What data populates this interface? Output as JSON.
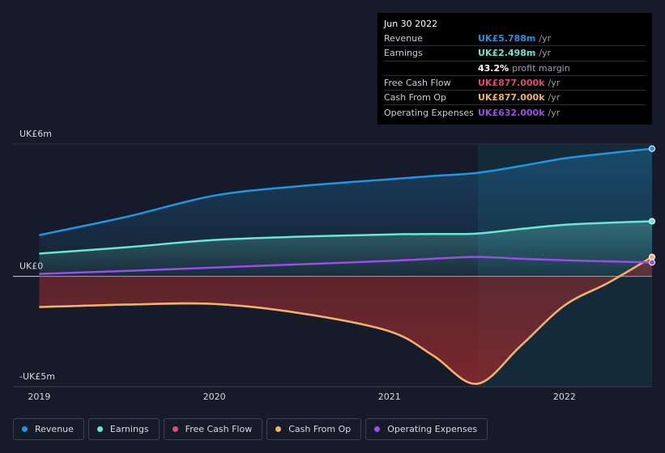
{
  "chart_data": {
    "type": "line",
    "x": [
      2019,
      2019.5,
      2020,
      2020.5,
      2021,
      2021.25,
      2021.5,
      2021.75,
      2022,
      2022.25,
      2022.5
    ],
    "series": [
      {
        "name": "Revenue",
        "color": "#2394df",
        "fill": true,
        "values": [
          1.87,
          2.7,
          3.66,
          4.1,
          4.4,
          4.55,
          4.69,
          5.0,
          5.35,
          5.58,
          5.788
        ]
      },
      {
        "name": "Earnings",
        "color": "#6ce5d4",
        "fill": true,
        "values": [
          1.03,
          1.32,
          1.65,
          1.8,
          1.9,
          1.92,
          1.94,
          2.15,
          2.34,
          2.43,
          2.498
        ]
      },
      {
        "name": "Free Cash Flow",
        "color": "#d94d7f",
        "fill": false,
        "values": [
          -1.39,
          -1.28,
          -1.25,
          -1.68,
          -2.49,
          -3.59,
          -4.87,
          -3.15,
          -1.32,
          -0.29,
          0.877
        ]
      },
      {
        "name": "Cash From Op",
        "color": "#f0b26b",
        "fill": true,
        "values": [
          -1.39,
          -1.28,
          -1.25,
          -1.68,
          -2.49,
          -3.59,
          -4.87,
          -3.15,
          -1.32,
          -0.29,
          0.877
        ]
      },
      {
        "name": "Operating Expenses",
        "color": "#9b4de8",
        "fill": false,
        "values": [
          0.11,
          0.25,
          0.4,
          0.55,
          0.7,
          0.8,
          0.88,
          0.8,
          0.73,
          0.68,
          0.632
        ]
      }
    ],
    "xlim": [
      2018.85,
      2022.5
    ],
    "xticks": [
      2019,
      2020,
      2021,
      2022
    ],
    "ylim": [
      -5,
      6
    ],
    "yticks": [
      {
        "value": 6,
        "label": "UK£6m"
      },
      {
        "value": 0,
        "label": "UK£0"
      },
      {
        "value": -5,
        "label": "-UK£5m"
      }
    ]
  },
  "tooltip": {
    "date": "Jun 30 2022",
    "values": [
      "UK£5.788m",
      "UK£2.498m",
      "UK£877.000k",
      "UK£877.000k",
      "UK£632.000k"
    ],
    "unit": "/yr",
    "margin": "43.2%",
    "margin_text": "profit margin"
  }
}
